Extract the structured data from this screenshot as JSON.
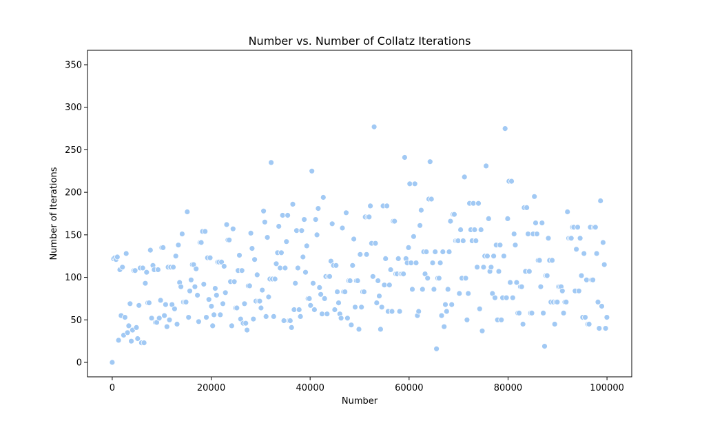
{
  "chart_data": {
    "type": "scatter",
    "title": "Number vs. Number of Collatz Iterations",
    "xlabel": "Number",
    "ylabel": "Number of Iterations",
    "xlim": [
      -5000,
      105000
    ],
    "ylim": [
      -17,
      367
    ],
    "xticks": [
      0,
      20000,
      40000,
      60000,
      80000,
      100000
    ],
    "yticks": [
      0,
      50,
      100,
      150,
      200,
      250,
      300,
      350
    ],
    "grid": false,
    "legend": "none",
    "marker_color": "#a1c9f4",
    "marker_edge": "#ffffff",
    "series": [
      {
        "sampling": "step",
        "x_start": 1,
        "x_end": 100000,
        "x_step": 257,
        "values": "collatz_steps"
      }
    ]
  }
}
